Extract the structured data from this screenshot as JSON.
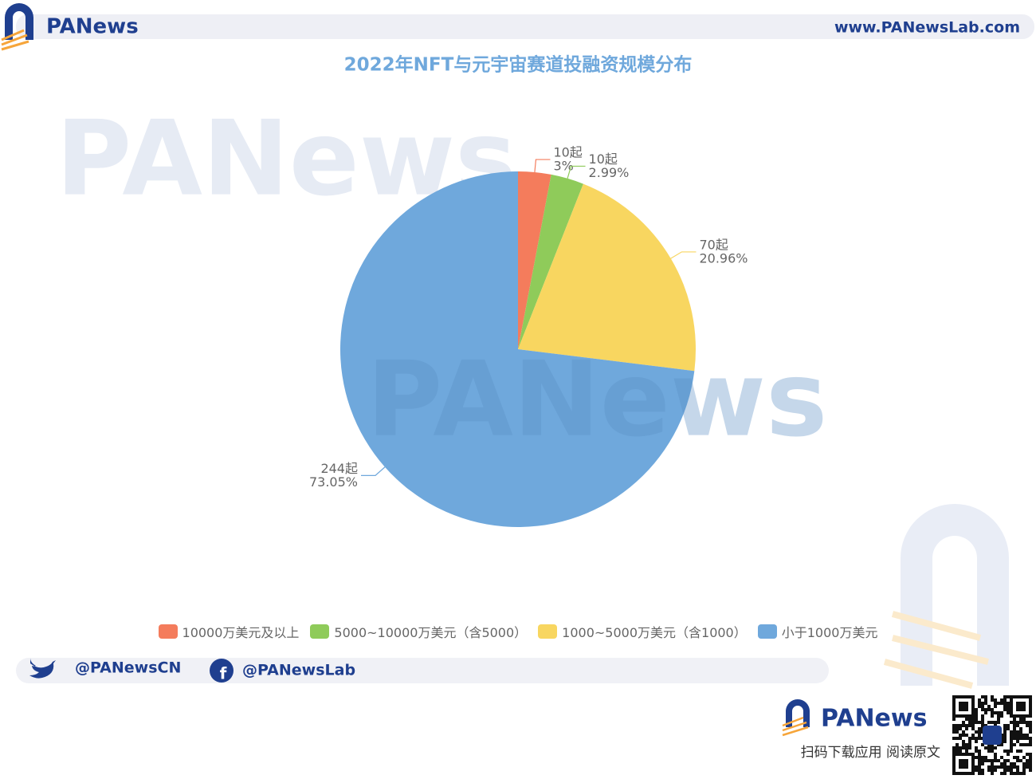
{
  "header": {
    "brand": "PANews",
    "url": "www.PANewsLab.com"
  },
  "chart_data": {
    "type": "pie",
    "title": "2022年NFT与元宇宙赛道投融资规模分布",
    "categories": [
      "10000万美元及以上",
      "5000~10000万美元（含5000）",
      "1000~5000万美元（含1000）",
      "小于1000万美元"
    ],
    "values": [
      10,
      10,
      70,
      244
    ],
    "value_labels": [
      "10起",
      "10起",
      "70起",
      "244起"
    ],
    "percent_labels": [
      "3%",
      "2.99%",
      "20.96%",
      "73.05%"
    ],
    "colors": [
      "#f47c5c",
      "#8fcb5a",
      "#f8d660",
      "#6fa8dc"
    ],
    "legend": "bottom"
  },
  "footer": {
    "twitter": "@PANewsCN",
    "facebook": "@PANewsLab",
    "brand": "PANews",
    "cta": "扫码下载应用  阅读原文"
  }
}
